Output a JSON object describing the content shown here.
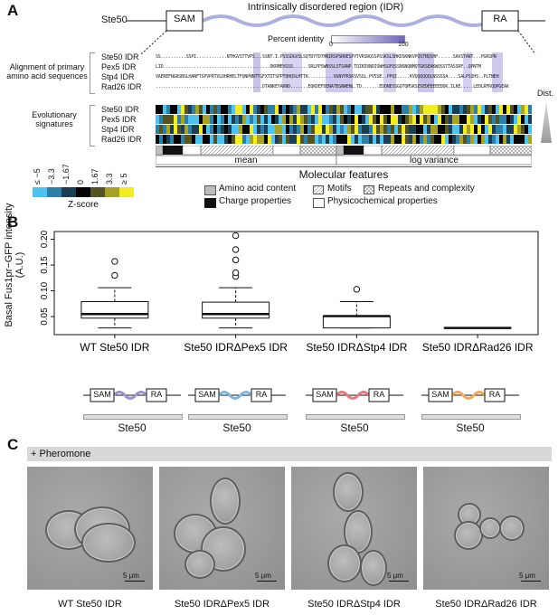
{
  "panelA": {
    "letter": "A",
    "protein": "Ste50",
    "domain_left": "SAM",
    "domain_right": "RA",
    "idr_title": "Intrinsically disordered region (IDR)",
    "percent_identity_label": "Percent identity",
    "pid_min": "0",
    "pid_max": "100",
    "alignment_label_line1": "Alignment of primary",
    "alignment_label_line2": "amino acid sequences",
    "evolutionary_label_line1": "Evolutionary",
    "evolutionary_label_line2": "signatures",
    "dist_label": "Dist.",
    "seq_names": [
      "Ste50 IDR",
      "Pex5 IDR",
      "Stp4 IDR",
      "Rad26 IDR"
    ],
    "sequences": [
      "SS..........SSPI............NTHGVSTTVPS...SSNT.I.PSSSDGVSLSQTDYTDTHNIRSPSRRESPYTVRSRQSSPSSKSLSHKDSKNKVPQSTNQSHP......SAVSTANT...PGRSPN",
      "LID..........................................DKRMEVGSS......SRLPPSWNSSLSTSANP.TQIKDVNDISWHSGFQSSNSNQNMQTGKSEAKWQSSTTASSRF..QPNTM",
      "VAEREFNGRSNSLHANFTSPVPRTVLDHRHELTFQNPNNTTGFXTITSPPTQHQSLHTTA..........VGNYPRSKSVSSL.PVSSE..PPQI.....KVQQQQQQLNSSSSA....SALPSIHS..PLTNEH",
      "..........................................DTANKEYAKND.......EQKDEFDENATEGNWENL.TD.......EDDNESSGQTQMSKSESEDEEEEEDDK.ILKE.....LEDLRFRQQPGEAK"
    ],
    "evo_names": [
      "Ste50 IDR",
      "Pex5 IDR",
      "Stp4 IDR",
      "Rad26 IDR"
    ],
    "feature_mean": "mean",
    "feature_logvar": "log variance",
    "molecular_features": "Molecular features",
    "zscore_ticks": [
      "≤ −5",
      "−3.3",
      "−1.67",
      "0",
      "1.67",
      "3.3",
      "≥ 5"
    ],
    "zscore_label": "Z-score",
    "legend": [
      "Amino acid content",
      "Motifs",
      "Repeats and complexity",
      "Charge properties",
      "Physicochemical properties"
    ]
  },
  "panelB": {
    "letter": "B",
    "chart_data": {
      "type": "box",
      "ylabel": "Basal Fus1pr−GFP intensity (A.U.)",
      "yticks": [
        "0.05",
        "0.10",
        "0.15",
        "0.20"
      ],
      "ylim": [
        0.015,
        0.215
      ],
      "categories": [
        "WT Ste50 IDR",
        "Ste50 IDRΔPex5 IDR",
        "Ste50 IDRΔStp4 IDR",
        "Ste50 IDRΔRad26 IDR"
      ],
      "boxes": [
        {
          "min": 0.028,
          "q1": 0.047,
          "median": 0.055,
          "q3": 0.079,
          "max": 0.106,
          "outliers": [
            0.13,
            0.157
          ]
        },
        {
          "min": 0.028,
          "q1": 0.047,
          "median": 0.055,
          "q3": 0.078,
          "max": 0.106,
          "outliers": [
            0.128,
            0.135,
            0.16,
            0.18,
            0.207
          ]
        },
        {
          "min": 0.028,
          "q1": 0.028,
          "median": 0.051,
          "q3": 0.051,
          "max": 0.079,
          "outliers": [
            0.103
          ]
        },
        {
          "min": 0.028,
          "q1": 0.028,
          "median": 0.028,
          "q3": 0.028,
          "max": 0.028,
          "outliers": []
        }
      ]
    },
    "schematic_sam": "SAM",
    "schematic_ra": "RA",
    "schematic_name": "Ste50",
    "idr_colors": [
      "#9a8fd0",
      "#7fb6df",
      "#e77a7f",
      "#f0aa5e"
    ]
  },
  "panelC": {
    "letter": "C",
    "banner": "+ Pheromone",
    "scale_label": "5 μm",
    "captions": [
      "WT Ste50 IDR",
      "Ste50 IDRΔPex5 IDR",
      "Ste50 IDRΔStp4 IDR",
      "Ste50 IDRΔRad26 IDR"
    ]
  }
}
